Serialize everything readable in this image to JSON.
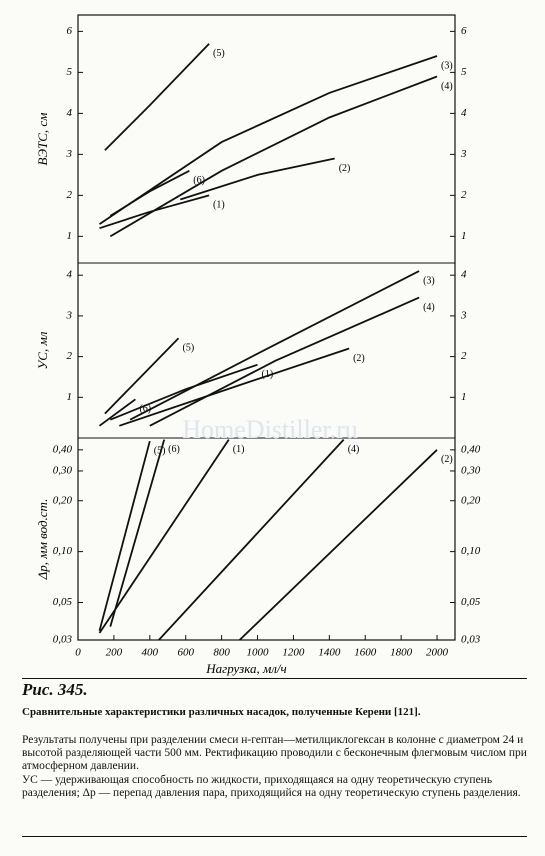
{
  "chart_data": [
    {
      "type": "line",
      "ylabel": "ВЭТС, см",
      "xlim": [
        0,
        2100
      ],
      "ylim": [
        0.35,
        6.4
      ],
      "yticks": [
        1,
        2,
        3,
        4,
        5,
        6
      ],
      "series": [
        {
          "name": "(5)",
          "color": "#111",
          "x": [
            150,
            400,
            730
          ],
          "values": [
            3.1,
            4.2,
            5.7
          ]
        },
        {
          "name": "(6)",
          "color": "#111",
          "x": [
            180,
            400,
            620
          ],
          "values": [
            1.5,
            2.1,
            2.6
          ]
        },
        {
          "name": "(3)",
          "color": "#111",
          "x": [
            120,
            800,
            1400,
            2000
          ],
          "values": [
            1.3,
            3.3,
            4.5,
            5.4
          ]
        },
        {
          "name": "(4)",
          "color": "#111",
          "x": [
            180,
            800,
            1400,
            2000
          ],
          "values": [
            1.0,
            2.6,
            3.9,
            4.9
          ]
        },
        {
          "name": "(2)",
          "color": "#111",
          "x": [
            570,
            1000,
            1430
          ],
          "values": [
            1.9,
            2.5,
            2.9
          ]
        },
        {
          "name": "(1)",
          "color": "#111",
          "x": [
            120,
            400,
            730
          ],
          "values": [
            1.2,
            1.6,
            2.0
          ]
        }
      ]
    },
    {
      "type": "line",
      "ylabel": "УС, мл",
      "xlim": [
        0,
        2100
      ],
      "ylim": [
        0,
        4.3
      ],
      "yticks": [
        1,
        2,
        3,
        4
      ],
      "series": [
        {
          "name": "(5)",
          "color": "#111",
          "x": [
            150,
            560
          ],
          "values": [
            0.6,
            2.45
          ]
        },
        {
          "name": "(6)",
          "color": "#111",
          "x": [
            120,
            320
          ],
          "values": [
            0.3,
            0.95
          ]
        },
        {
          "name": "(1)",
          "color": "#111",
          "x": [
            180,
            600,
            1000
          ],
          "values": [
            0.45,
            1.2,
            1.8
          ]
        },
        {
          "name": "(2)",
          "color": "#111",
          "x": [
            230,
            900,
            1510
          ],
          "values": [
            0.3,
            1.3,
            2.2
          ]
        },
        {
          "name": "(3)",
          "color": "#111",
          "x": [
            290,
            1100,
            1900
          ],
          "values": [
            0.45,
            2.3,
            4.1
          ]
        },
        {
          "name": "(4)",
          "color": "#111",
          "x": [
            400,
            1100,
            1900
          ],
          "values": [
            0.3,
            1.9,
            3.45
          ]
        }
      ]
    },
    {
      "type": "line",
      "ylabel": "Δp, мм вод.ст.",
      "xlabel": "Нагрузка, мл/ч",
      "log": true,
      "xlim": [
        0,
        2100
      ],
      "ylim": [
        0.03,
        0.47
      ],
      "xticks": [
        0,
        200,
        400,
        600,
        800,
        1000,
        1200,
        1400,
        1600,
        1800,
        2000
      ],
      "yticks": [
        {
          "value": 0.03,
          "label": "0,03"
        },
        {
          "value": 0.05,
          "label": "0,05"
        },
        {
          "value": 0.1,
          "label": "0,10"
        },
        {
          "value": 0.2,
          "label": "0,20"
        },
        {
          "value": 0.3,
          "label": "0,30"
        },
        {
          "value": 0.4,
          "label": "0,40"
        }
      ],
      "series": [
        {
          "name": "(5)",
          "color": "#111",
          "x": [
            120,
            400
          ],
          "values": [
            0.034,
            0.45
          ]
        },
        {
          "name": "(6)",
          "color": "#111",
          "x": [
            180,
            480
          ],
          "values": [
            0.036,
            0.46
          ]
        },
        {
          "name": "(1)",
          "color": "#111",
          "x": [
            120,
            840
          ],
          "values": [
            0.033,
            0.46
          ]
        },
        {
          "name": "(4)",
          "color": "#111",
          "x": [
            450,
            1480
          ],
          "values": [
            0.03,
            0.46
          ]
        },
        {
          "name": "(2)",
          "color": "#111",
          "x": [
            900,
            2000
          ],
          "values": [
            0.03,
            0.4
          ]
        }
      ]
    }
  ],
  "watermark": "HomeDistiller.ru",
  "caption": {
    "figure": "Рис. 345.",
    "title": "Сравнительные характеристики различных насадок, полученные Керени [121].",
    "paragraphs": [
      "Результаты получены при разделении смеси н-гептан—метилциклогексан в колонне с диаметром 24 и высотой разделяющей части 500 мм. Ректификацию проводили с бесконечным флегмовым числом при атмосферном давлении.",
      "УС — удерживающая способность по жидкости, приходящаяся на одну теоретическую ступень разделения; Δp — перепад давления пара, приходящийся на одну теоретическую ступень разделения."
    ]
  }
}
